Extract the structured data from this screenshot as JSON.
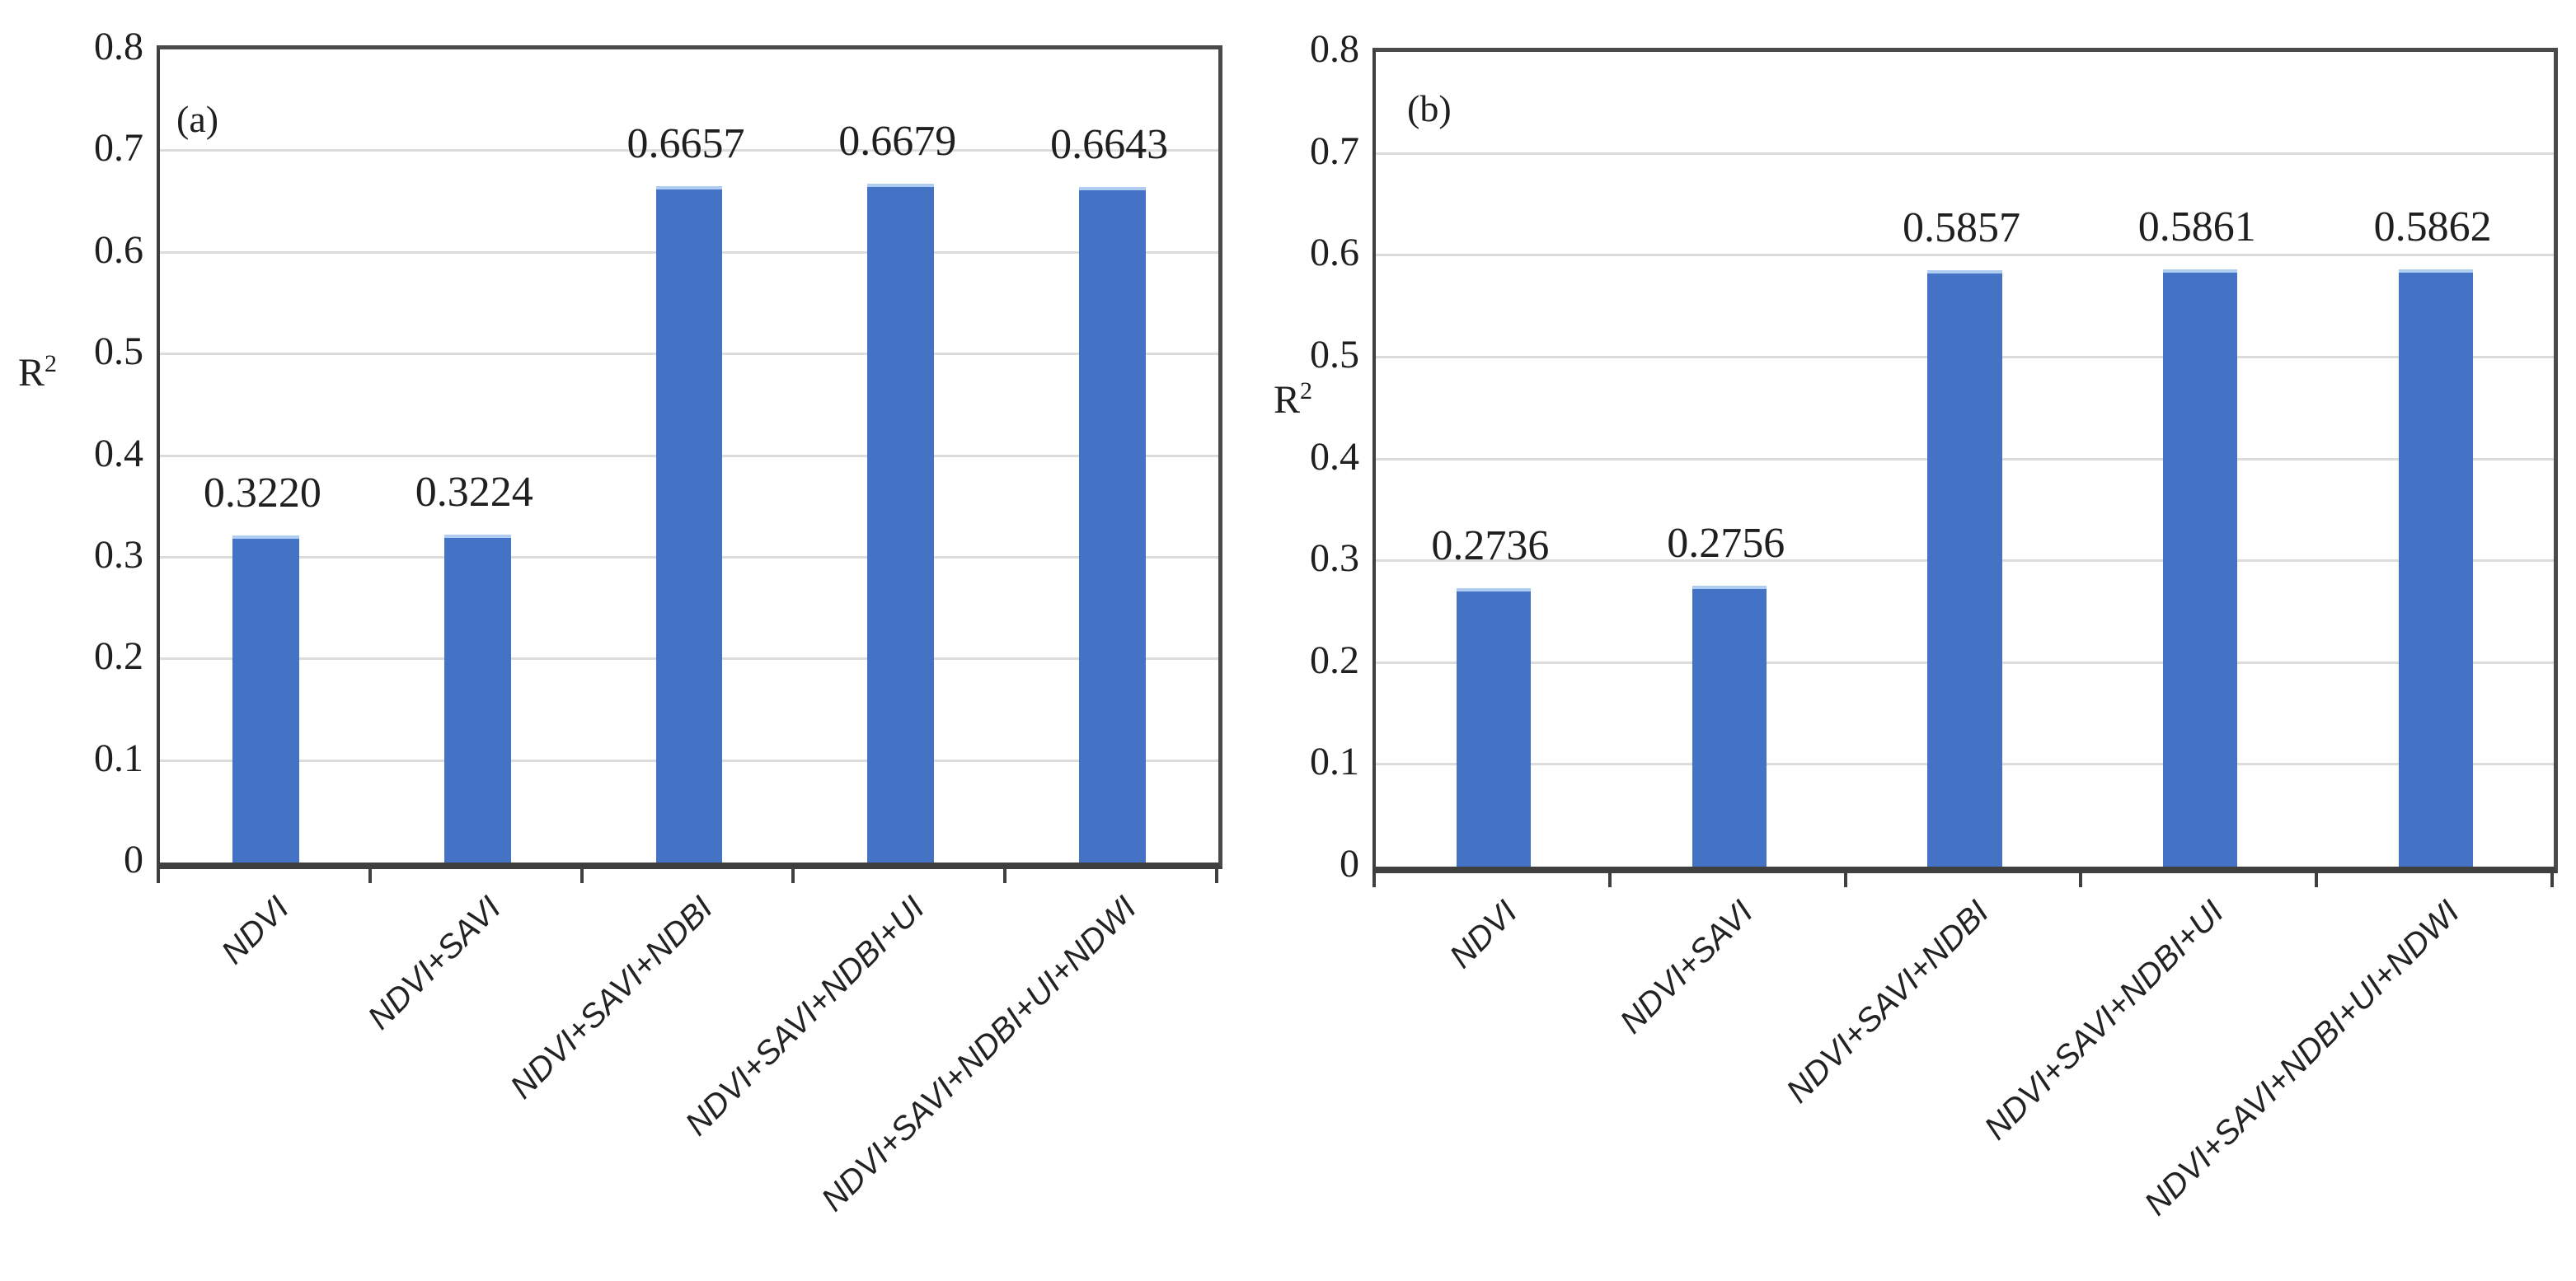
{
  "figure": {
    "bar_color": "#4472C4",
    "bar_cap_color": "#aecdf0",
    "grid_color": "#dcdcdc",
    "frame_color": "#4a4a4a",
    "text_color": "#1f1f1f"
  },
  "chart_data": [
    {
      "type": "bar",
      "panel_label": "(a)",
      "ylabel": "R",
      "ylabel_sup": "2",
      "xlabel": "",
      "categories": [
        "NDVI",
        "NDVI+SAVI",
        "NDVI+SAVI+NDBI",
        "NDVI+SAVI+NDBI+UI",
        "NDVI+SAVI+NDBI+UI+NDWI"
      ],
      "values": [
        0.322,
        0.3224,
        0.6657,
        0.6679,
        0.6643
      ],
      "value_labels": [
        "0.3220",
        "0.3224",
        "0.6657",
        "0.6679",
        "0.6643"
      ],
      "ylim": [
        0,
        0.8
      ],
      "yticks": [
        "0.8",
        "0.7",
        "0.6",
        "0.5",
        "0.4",
        "0.3",
        "0.2",
        "0.1",
        "0"
      ],
      "grid": true,
      "legend": "none"
    },
    {
      "type": "bar",
      "panel_label": "(b)",
      "ylabel": "R",
      "ylabel_sup": "2",
      "xlabel": "",
      "categories": [
        "NDVI",
        "NDVI+SAVI",
        "NDVI+SAVI+NDBI",
        "NDVI+SAVI+NDBI+UI",
        "NDVI+SAVI+NDBI+UI+NDWI"
      ],
      "values": [
        0.2736,
        0.2756,
        0.5857,
        0.5861,
        0.5862
      ],
      "value_labels": [
        "0.2736",
        "0.2756",
        "0.5857",
        "0.5861",
        "0.5862"
      ],
      "ylim": [
        0,
        0.8
      ],
      "yticks": [
        "0.8",
        "0.7",
        "0.6",
        "0.5",
        "0.4",
        "0.3",
        "0.2",
        "0.1",
        "0"
      ],
      "grid": true,
      "legend": "none"
    }
  ]
}
